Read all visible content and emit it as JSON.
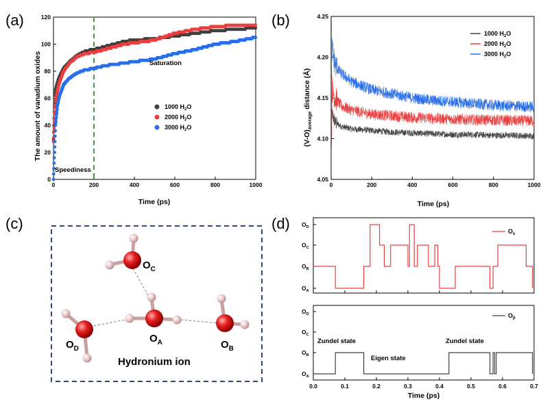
{
  "chart_data": [
    {
      "panel": "(a)",
      "type": "scatter",
      "ylabel": "The amount of vanadium oxides",
      "xlabel": "Time (ps)",
      "xlim": [
        0,
        1000
      ],
      "ylim": [
        0,
        120
      ],
      "xticks": [
        0,
        200,
        400,
        600,
        800,
        1000
      ],
      "yticks": [
        0,
        20,
        40,
        60,
        80,
        100,
        120
      ],
      "vline": {
        "x": 200,
        "color": "#3aa13a",
        "style": "dashed"
      },
      "annotations": [
        {
          "text": "Saturation",
          "x": 490,
          "y": 86
        },
        {
          "text": "Speediness",
          "x": 10,
          "y": 8
        }
      ],
      "legend": {
        "position": "right-middle"
      },
      "series": [
        {
          "name": "1000 H2O",
          "color": "#404040",
          "x": [
            0,
            5,
            10,
            20,
            30,
            50,
            80,
            120,
            160,
            200,
            250,
            300,
            350,
            400,
            500,
            600,
            700,
            800,
            900,
            1000
          ],
          "y": [
            30,
            55,
            66,
            72,
            76,
            82,
            87,
            92,
            95,
            96,
            98,
            100,
            102,
            103,
            104,
            106,
            108,
            110,
            111,
            112
          ]
        },
        {
          "name": "2000 H2O",
          "color": "#e84040",
          "x": [
            0,
            5,
            10,
            20,
            30,
            50,
            80,
            120,
            160,
            200,
            250,
            300,
            350,
            400,
            500,
            600,
            700,
            800,
            900,
            1000
          ],
          "y": [
            28,
            45,
            58,
            66,
            72,
            80,
            86,
            91,
            93,
            94,
            96,
            98,
            100,
            101,
            103,
            108,
            111,
            113,
            114,
            114
          ]
        },
        {
          "name": "3000 H2O",
          "color": "#2a6fe8",
          "x": [
            0,
            5,
            10,
            20,
            30,
            50,
            80,
            120,
            160,
            200,
            250,
            300,
            350,
            400,
            500,
            600,
            700,
            800,
            900,
            1000
          ],
          "y": [
            0,
            20,
            40,
            55,
            62,
            70,
            75,
            79,
            81,
            82,
            84,
            85,
            86,
            87,
            89,
            93,
            96,
            100,
            102,
            105
          ]
        }
      ]
    },
    {
      "panel": "(b)",
      "type": "line",
      "ylabel": "(V-O)average distance (Å)",
      "xlabel": "Time (ps)",
      "xlim": [
        0,
        1000
      ],
      "ylim": [
        4.05,
        4.25
      ],
      "xticks": [
        0,
        200,
        400,
        600,
        800,
        1000
      ],
      "yticks": [
        4.05,
        4.1,
        4.15,
        4.2,
        4.25
      ],
      "legend": {
        "position": "top-right"
      },
      "series": [
        {
          "name": "1000 H2O",
          "color": "#404040",
          "noise": 0.004,
          "x": [
            0,
            5,
            20,
            50,
            100,
            200,
            300,
            400,
            500,
            600,
            700,
            800,
            900,
            1000
          ],
          "y": [
            4.14,
            4.13,
            4.12,
            4.115,
            4.112,
            4.11,
            4.108,
            4.107,
            4.106,
            4.105,
            4.105,
            4.104,
            4.104,
            4.103
          ]
        },
        {
          "name": "2000 H2O",
          "color": "#e84040",
          "noise": 0.007,
          "x": [
            0,
            5,
            20,
            50,
            100,
            200,
            300,
            400,
            500,
            600,
            700,
            800,
            900,
            1000
          ],
          "y": [
            4.17,
            4.16,
            4.15,
            4.14,
            4.135,
            4.13,
            4.128,
            4.126,
            4.125,
            4.124,
            4.123,
            4.123,
            4.122,
            4.122
          ]
        },
        {
          "name": "3000 H2O",
          "color": "#2a6fe8",
          "noise": 0.007,
          "x": [
            0,
            5,
            20,
            50,
            100,
            200,
            300,
            400,
            500,
            600,
            700,
            800,
            900,
            1000
          ],
          "y": [
            4.23,
            4.21,
            4.19,
            4.18,
            4.17,
            4.16,
            4.155,
            4.15,
            4.147,
            4.145,
            4.143,
            4.141,
            4.14,
            4.139
          ]
        }
      ]
    },
    {
      "panel": "(d)",
      "type": "line",
      "xlabel": "Time (ps)",
      "xlim": [
        0,
        0.7
      ],
      "xticks": [
        0.0,
        0.1,
        0.2,
        0.3,
        0.4,
        0.5,
        0.6,
        0.7
      ],
      "states": [
        "OA",
        "OB",
        "OC",
        "OD"
      ],
      "subplots": [
        {
          "series_name": "Ox",
          "color": "#e84040",
          "x": [
            0,
            0.07,
            0.07,
            0.16,
            0.16,
            0.18,
            0.18,
            0.21,
            0.21,
            0.225,
            0.225,
            0.245,
            0.245,
            0.3,
            0.3,
            0.305,
            0.305,
            0.32,
            0.32,
            0.33,
            0.33,
            0.365,
            0.365,
            0.385,
            0.385,
            0.395,
            0.395,
            0.4,
            0.4,
            0.45,
            0.45,
            0.56,
            0.56,
            0.57,
            0.57,
            0.585,
            0.585,
            0.61,
            0.61,
            0.63,
            0.63,
            0.675,
            0.675,
            0.695,
            0.695
          ],
          "y": [
            1,
            1,
            0,
            0,
            1,
            1,
            3,
            3,
            2,
            2,
            1,
            1,
            2,
            2,
            1,
            1,
            3,
            3,
            1,
            1,
            2,
            2,
            1,
            1,
            2,
            2,
            1,
            1,
            0,
            0,
            1,
            1,
            0,
            0,
            1,
            1,
            2,
            2,
            2,
            2,
            2,
            2,
            1,
            1,
            0
          ]
        },
        {
          "series_name": "Oβ",
          "color": "#404040",
          "x": [
            0,
            0.07,
            0.07,
            0.16,
            0.16,
            0.43,
            0.43,
            0.56,
            0.56,
            0.57,
            0.57,
            0.575,
            0.575,
            0.58,
            0.58,
            0.695,
            0.695
          ],
          "y": [
            0,
            0,
            1,
            1,
            0,
            0,
            1,
            1,
            0,
            0,
            1,
            1,
            0,
            0,
            1,
            1,
            0
          ]
        }
      ],
      "annotations": [
        "Zundel state",
        "Eigen state",
        "Zundel state"
      ]
    }
  ],
  "labels": {
    "a": "(a)",
    "b": "(b)",
    "c": "(c)",
    "d": "(d)",
    "saturation": "Saturation",
    "speediness": "Speediness",
    "hydronium": "Hydronium ion",
    "zundel1": "Zundel state",
    "zundel2": "Zundel state",
    "eigen": "Eigen state",
    "time_ps": "Time (ps)",
    "ylab_a": "The amount of vanadium oxides",
    "leg1": "1000 H",
    "leg2": "2000 H",
    "leg3": "3000 H",
    "o_sub": "O",
    "two": "2",
    "ylab_b_pre": "(V-O)",
    "ylab_b_sub": "average",
    "ylab_b_post": " distance (Å)",
    "oc_o": "O",
    "oc_s": "C",
    "od_o": "O",
    "od_s": "D",
    "oa_o": "O",
    "oa_s": "A",
    "ob_o": "O",
    "ob_s": "B",
    "ox_o": "O",
    "ox_s": "x",
    "obeta_o": "O",
    "obeta_s": "β"
  },
  "colors": {
    "red": "#e84040",
    "blue": "#2a6fe8",
    "gray": "#404040",
    "green": "#3aa13a",
    "oxygen": "#e02020",
    "hydrogen": "#e8c8c8",
    "frame": "#2f4a7a"
  }
}
